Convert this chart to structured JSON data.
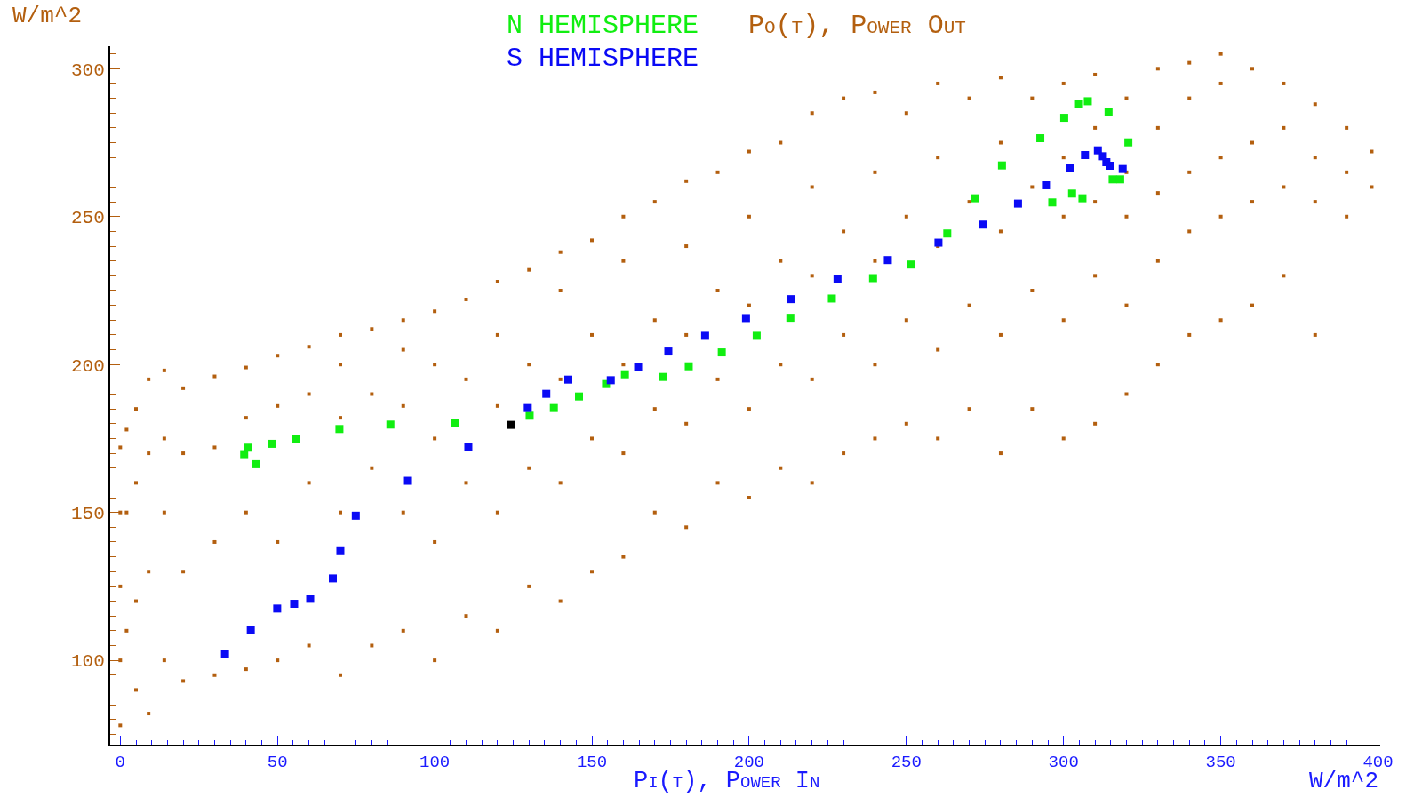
{
  "chart_data": {
    "type": "scatter",
    "ylabel": "Po(t), Power Out",
    "xlabel": "Pi(t), Power In",
    "annotations": [
      "W/m^2",
      "W/m^2"
    ],
    "xlim": [
      -3.2,
      400.7
    ],
    "ylim": [
      71.5,
      307.6
    ],
    "xticks": [
      0,
      {
        "value": 5,
        "label": null
      },
      {
        "value": 10,
        "label": null
      },
      {
        "value": 15,
        "label": null
      },
      {
        "value": 20,
        "label": null
      },
      {
        "value": 25,
        "label": null
      },
      {
        "value": 30,
        "label": null
      },
      {
        "value": 35,
        "label": null
      },
      {
        "value": 40,
        "label": null
      },
      {
        "value": 45,
        "label": null
      },
      50,
      {
        "value": 55,
        "label": null
      },
      {
        "value": 60,
        "label": null
      },
      {
        "value": 65,
        "label": null
      },
      {
        "value": 70,
        "label": null
      },
      {
        "value": 75,
        "label": null
      },
      {
        "value": 80,
        "label": null
      },
      {
        "value": 85,
        "label": null
      },
      {
        "value": 90,
        "label": null
      },
      {
        "value": 95,
        "label": null
      },
      100,
      {
        "value": 105,
        "label": null
      },
      {
        "value": 110,
        "label": null
      },
      {
        "value": 115,
        "label": null
      },
      {
        "value": 120,
        "label": null
      },
      {
        "value": 125,
        "label": null
      },
      {
        "value": 130,
        "label": null
      },
      {
        "value": 135,
        "label": null
      },
      {
        "value": 140,
        "label": null
      },
      {
        "value": 145,
        "label": null
      },
      150,
      {
        "value": 155,
        "label": null
      },
      {
        "value": 160,
        "label": null
      },
      {
        "value": 165,
        "label": null
      },
      {
        "value": 170,
        "label": null
      },
      {
        "value": 175,
        "label": null
      },
      {
        "value": 180,
        "label": null
      },
      {
        "value": 185,
        "label": null
      },
      {
        "value": 190,
        "label": null
      },
      {
        "value": 195,
        "label": null
      },
      200,
      {
        "value": 205,
        "label": null
      },
      {
        "value": 210,
        "label": null
      },
      {
        "value": 215,
        "label": null
      },
      {
        "value": 220,
        "label": null
      },
      {
        "value": 225,
        "label": null
      },
      {
        "value": 230,
        "label": null
      },
      {
        "value": 235,
        "label": null
      },
      {
        "value": 240,
        "label": null
      },
      {
        "value": 245,
        "label": null
      },
      250,
      {
        "value": 255,
        "label": null
      },
      {
        "value": 260,
        "label": null
      },
      {
        "value": 265,
        "label": null
      },
      {
        "value": 270,
        "label": null
      },
      {
        "value": 275,
        "label": null
      },
      {
        "value": 280,
        "label": null
      },
      {
        "value": 285,
        "label": null
      },
      {
        "value": 290,
        "label": null
      },
      {
        "value": 295,
        "label": null
      },
      300,
      {
        "value": 305,
        "label": null
      },
      {
        "value": 310,
        "label": null
      },
      {
        "value": 315,
        "label": null
      },
      {
        "value": 320,
        "label": null
      },
      {
        "value": 325,
        "label": null
      },
      {
        "value": 330,
        "label": null
      },
      {
        "value": 335,
        "label": null
      },
      {
        "value": 340,
        "label": null
      },
      {
        "value": 345,
        "label": null
      },
      350,
      {
        "value": 355,
        "label": null
      },
      {
        "value": 360,
        "label": null
      },
      {
        "value": 365,
        "label": null
      },
      {
        "value": 370,
        "label": null
      },
      {
        "value": 375,
        "label": null
      },
      {
        "value": 380,
        "label": null
      },
      {
        "value": 385,
        "label": null
      },
      {
        "value": 390,
        "label": null
      },
      {
        "value": 395,
        "label": null
      },
      400
    ],
    "yticks": [
      {
        "value": 75,
        "label": null
      },
      {
        "value": 80,
        "label": null
      },
      {
        "value": 85,
        "label": null
      },
      {
        "value": 90,
        "label": null
      },
      {
        "value": 95,
        "label": null
      },
      100,
      {
        "value": 105,
        "label": null
      },
      {
        "value": 110,
        "label": null
      },
      {
        "value": 115,
        "label": null
      },
      {
        "value": 120,
        "label": null
      },
      {
        "value": 125,
        "label": null
      },
      {
        "value": 130,
        "label": null
      },
      {
        "value": 135,
        "label": null
      },
      {
        "value": 140,
        "label": null
      },
      {
        "value": 145,
        "label": null
      },
      150,
      {
        "value": 155,
        "label": null
      },
      {
        "value": 160,
        "label": null
      },
      {
        "value": 165,
        "label": null
      },
      {
        "value": 170,
        "label": null
      },
      {
        "value": 175,
        "label": null
      },
      {
        "value": 180,
        "label": null
      },
      {
        "value": 185,
        "label": null
      },
      {
        "value": 190,
        "label": null
      },
      {
        "value": 195,
        "label": null
      },
      200,
      {
        "value": 205,
        "label": null
      },
      {
        "value": 210,
        "label": null
      },
      {
        "value": 215,
        "label": null
      },
      {
        "value": 220,
        "label": null
      },
      {
        "value": 225,
        "label": null
      },
      {
        "value": 230,
        "label": null
      },
      {
        "value": 235,
        "label": null
      },
      {
        "value": 240,
        "label": null
      },
      {
        "value": 245,
        "label": null
      },
      250,
      {
        "value": 255,
        "label": null
      },
      {
        "value": 260,
        "label": null
      },
      {
        "value": 265,
        "label": null
      },
      {
        "value": 270,
        "label": null
      },
      {
        "value": 275,
        "label": null
      },
      {
        "value": 280,
        "label": null
      },
      {
        "value": 285,
        "label": null
      },
      {
        "value": 290,
        "label": null
      },
      {
        "value": 295,
        "label": null
      },
      300,
      {
        "value": 305,
        "label": null
      }
    ],
    "marker": "square",
    "series": [
      {
        "color": "#b35f0f",
        "x": [
          0,
          0,
          0,
          0,
          0,
          2,
          2,
          2,
          5,
          5,
          5,
          5,
          9,
          9,
          9,
          9,
          14,
          14,
          14,
          14,
          20,
          20,
          20,
          20,
          30,
          30,
          30,
          30,
          40,
          40,
          40,
          40,
          50,
          50,
          50,
          50,
          60,
          60,
          60,
          60,
          70,
          70,
          70,
          70,
          70,
          80,
          80,
          80,
          80,
          90,
          90,
          90,
          90,
          90,
          100,
          100,
          100,
          100,
          100,
          110,
          110,
          110,
          110,
          120,
          120,
          120,
          120,
          120,
          130,
          130,
          130,
          130,
          140,
          140,
          140,
          140,
          140,
          150,
          150,
          150,
          150,
          160,
          160,
          160,
          160,
          160,
          170,
          170,
          170,
          170,
          180,
          180,
          180,
          180,
          180,
          190,
          190,
          190,
          190,
          200,
          200,
          200,
          200,
          200,
          210,
          210,
          210,
          210,
          220,
          220,
          220,
          220,
          220,
          230,
          230,
          230,
          230,
          240,
          240,
          240,
          240,
          240,
          250,
          250,
          250,
          250,
          260,
          260,
          260,
          260,
          260,
          270,
          270,
          270,
          270,
          280,
          280,
          280,
          280,
          280,
          290,
          290,
          290,
          290,
          300,
          300,
          300,
          300,
          300,
          310,
          310,
          310,
          310,
          310,
          320,
          320,
          320,
          320,
          320,
          330,
          330,
          330,
          330,
          330,
          340,
          340,
          340,
          340,
          340,
          350,
          350,
          350,
          350,
          350,
          360,
          360,
          360,
          360,
          370,
          370,
          370,
          370,
          380,
          380,
          380,
          380,
          390,
          390,
          390,
          398,
          398
        ],
        "values": [
          78,
          100,
          125,
          150,
          172,
          110,
          150,
          178,
          90,
          120,
          160,
          185,
          82,
          130,
          170,
          195,
          100,
          150,
          175,
          198,
          93,
          130,
          170,
          192,
          95,
          140,
          172,
          196,
          97,
          150,
          182,
          199,
          100,
          140,
          186,
          203,
          105,
          160,
          190,
          206,
          95,
          150,
          182,
          200,
          210,
          105,
          165,
          190,
          212,
          110,
          150,
          186,
          205,
          215,
          100,
          140,
          175,
          200,
          218,
          115,
          160,
          195,
          222,
          110,
          150,
          186,
          210,
          228,
          125,
          165,
          200,
          232,
          120,
          160,
          195,
          225,
          238,
          130,
          175,
          210,
          242,
          135,
          170,
          200,
          235,
          250,
          150,
          185,
          215,
          255,
          145,
          180,
          210,
          240,
          262,
          160,
          195,
          225,
          265,
          155,
          185,
          220,
          250,
          272,
          165,
          200,
          235,
          275,
          160,
          195,
          230,
          260,
          285,
          170,
          210,
          245,
          290,
          175,
          200,
          235,
          265,
          292,
          180,
          215,
          250,
          285,
          175,
          205,
          240,
          270,
          295,
          185,
          220,
          255,
          290,
          170,
          210,
          245,
          275,
          297,
          185,
          225,
          260,
          290,
          175,
          215,
          250,
          270,
          295,
          180,
          230,
          255,
          280,
          298,
          190,
          220,
          250,
          265,
          290,
          200,
          235,
          258,
          280,
          300,
          210,
          245,
          265,
          290,
          302,
          215,
          250,
          270,
          295,
          305,
          220,
          255,
          275,
          300,
          230,
          260,
          280,
          295,
          210,
          255,
          270,
          288,
          250,
          265,
          280,
          260,
          272
        ]
      },
      {
        "name": "N HEMISPHERE",
        "color": "#11ee11",
        "x": [
          39.4,
          40.6,
          43.2,
          48.2,
          55.9,
          69.7,
          85.9,
          106.5,
          130.2,
          137.9,
          145.9,
          154.5,
          160.5,
          172.6,
          180.8,
          191.3,
          202.4,
          213.1,
          226.3,
          239.4,
          251.6,
          263.0,
          271.9,
          280.4,
          292.6,
          300.2,
          304.9,
          307.7,
          314.3,
          320.6,
          315.6,
          318.0,
          302.7,
          306.0,
          296.4
        ],
        "values": [
          169.7,
          171.9,
          166.3,
          173.2,
          174.7,
          178.2,
          179.7,
          180.3,
          182.7,
          185.3,
          189.2,
          193.4,
          196.7,
          195.8,
          199.4,
          204.1,
          209.7,
          215.8,
          222.3,
          229.2,
          233.8,
          244.3,
          256.2,
          267.3,
          276.5,
          283.4,
          288.2,
          289.0,
          285.4,
          275.1,
          262.6,
          262.6,
          257.8,
          256.2,
          254.8
        ]
      },
      {
        "name": "S HEMISPHERE",
        "color": "#0a0af5",
        "x": [
          33.3,
          41.5,
          49.9,
          55.3,
          60.4,
          67.6,
          70.0,
          74.9,
          91.5,
          110.7,
          129.6,
          135.5,
          142.5,
          156.0,
          164.7,
          174.3,
          186.0,
          199.0,
          213.4,
          228.1,
          244.1,
          260.2,
          274.4,
          285.5,
          294.4,
          302.2,
          306.8,
          310.9,
          312.5,
          313.6,
          314.7,
          318.8
        ],
        "values": [
          102.2,
          110.1,
          117.5,
          119.1,
          120.8,
          127.7,
          137.2,
          148.9,
          160.7,
          172.0,
          185.3,
          190.1,
          194.9,
          194.7,
          199.1,
          204.4,
          209.7,
          215.7,
          222.1,
          228.9,
          235.3,
          241.2,
          247.3,
          254.4,
          260.6,
          266.6,
          270.8,
          272.4,
          270.4,
          268.4,
          267.2,
          266.1
        ]
      },
      {
        "color": "#000000",
        "x": [
          124.2
        ],
        "values": [
          179.6
        ]
      }
    ]
  }
}
